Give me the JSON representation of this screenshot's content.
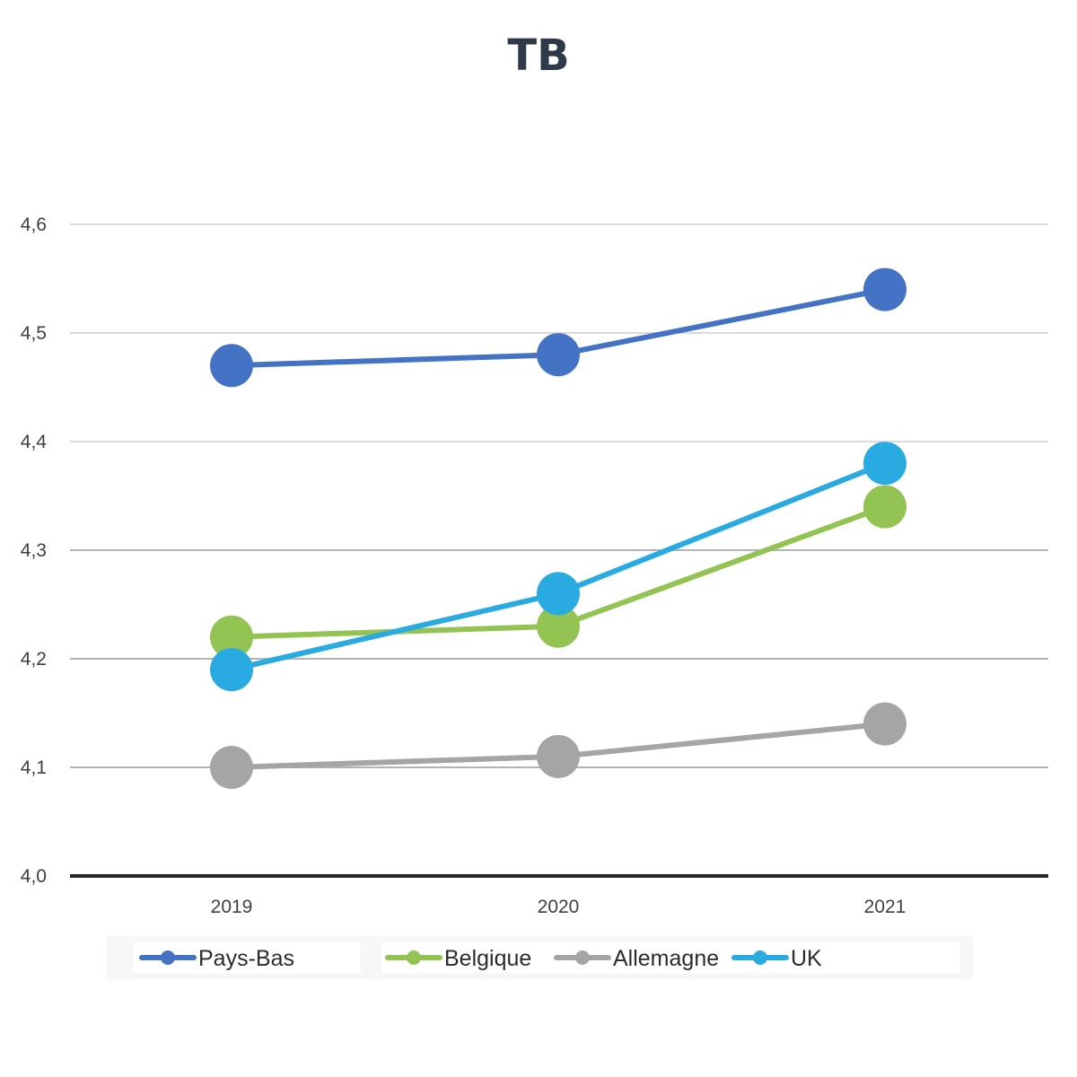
{
  "chart_data": {
    "type": "line",
    "title": "TB",
    "categories": [
      "2019",
      "2020",
      "2021"
    ],
    "ylim": [
      4.0,
      4.6
    ],
    "yticks": [
      "4,0",
      "4,1",
      "4,2",
      "4,3",
      "4,4",
      "4,5",
      "4,6"
    ],
    "ytick_values": [
      4.0,
      4.1,
      4.2,
      4.3,
      4.4,
      4.5,
      4.6
    ],
    "grid": true,
    "legend_position": "bottom",
    "xlabel": "",
    "ylabel": "",
    "series": [
      {
        "name": "Pays-Bas",
        "color": "#4472c4",
        "values": [
          4.47,
          4.48,
          4.54
        ]
      },
      {
        "name": "Belgique",
        "color": "#92c353",
        "values": [
          4.22,
          4.23,
          4.34
        ]
      },
      {
        "name": "Allemagne",
        "color": "#a5a5a5",
        "values": [
          4.1,
          4.11,
          4.14
        ]
      },
      {
        "name": "UK",
        "color": "#29abe2",
        "values": [
          4.19,
          4.26,
          4.38
        ]
      }
    ]
  }
}
